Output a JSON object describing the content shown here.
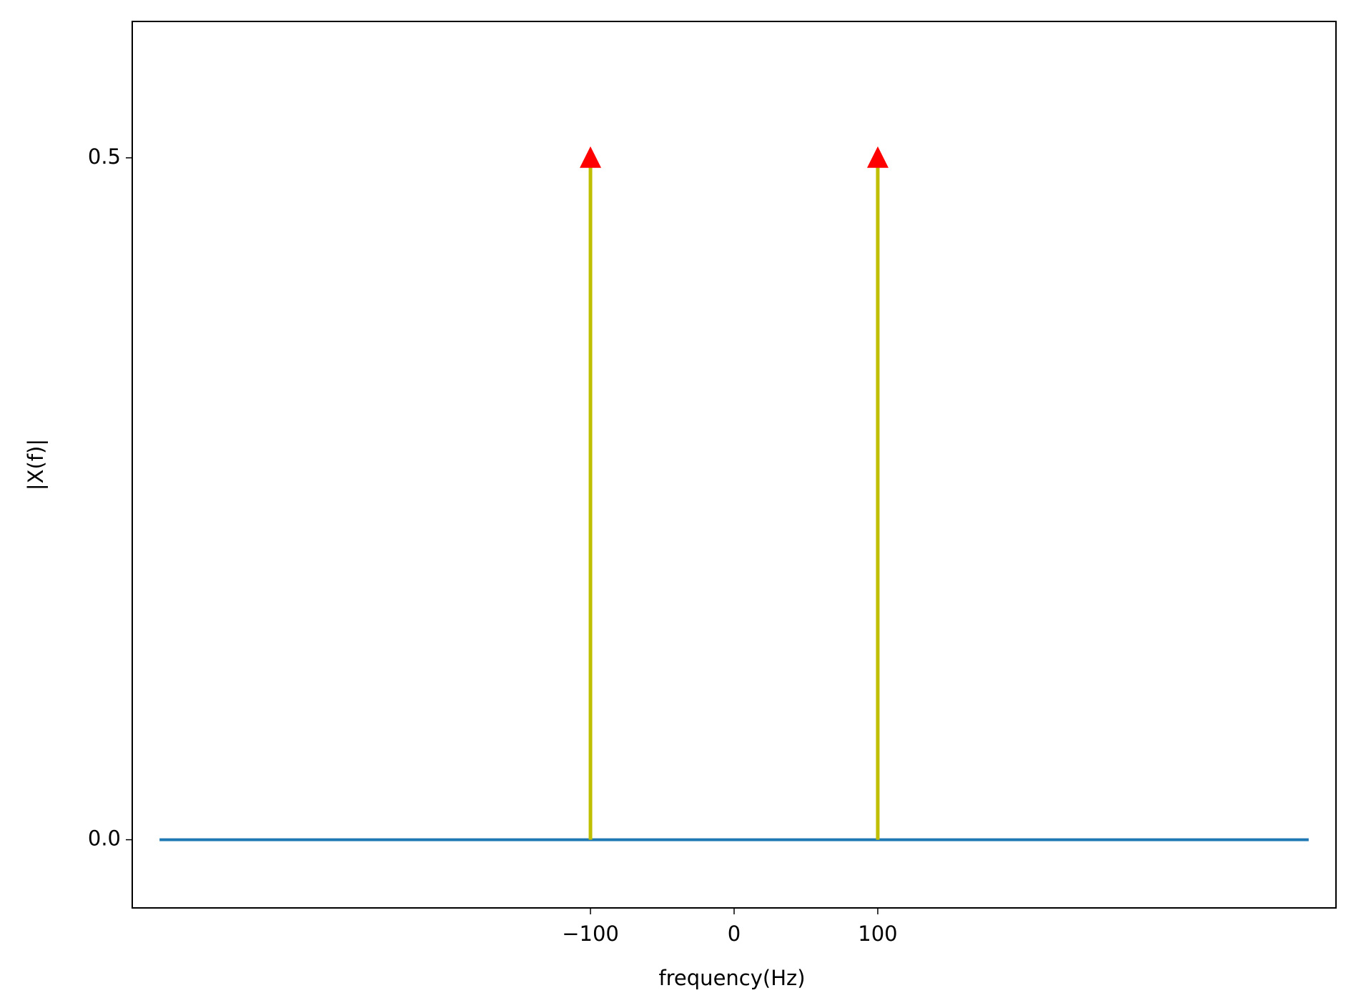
{
  "chart_data": {
    "type": "stem",
    "xlabel": "frequency(Hz)",
    "ylabel": "|X(f)|",
    "x": [
      -100,
      100
    ],
    "values": [
      0.5,
      0.5
    ],
    "stem_color": "#bfbf00",
    "marker_color": "#ff0000",
    "baseline": {
      "x": [
        -400,
        400
      ],
      "values": [
        0,
        0
      ],
      "color": "#1f77b4"
    },
    "xlim": [
      -419,
      419
    ],
    "ylim": [
      -0.05,
      0.6
    ],
    "xticks": [
      {
        "value": -100,
        "label": "−100"
      },
      0,
      100
    ],
    "yticks": [
      {
        "value": 0,
        "label": "0.0"
      },
      0.5
    ],
    "grid": false
  }
}
